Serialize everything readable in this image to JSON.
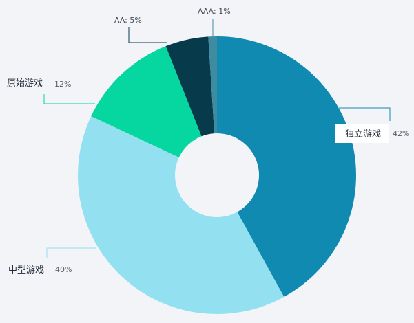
{
  "chart_data": {
    "type": "pie",
    "donut": true,
    "start_angle_deg": 0,
    "direction": "clockwise",
    "slices": [
      {
        "label": "独立游戏",
        "value": 42,
        "pct_text": "42%",
        "color": "#118ab2",
        "leader_color": "#118ab2",
        "label_style": "split"
      },
      {
        "label": "中型游戏",
        "value": 40,
        "pct_text": "40%",
        "color": "#93e1f0",
        "leader_color": "#93e1f0",
        "label_style": "split"
      },
      {
        "label": "原始游戏",
        "value": 12,
        "pct_text": "12%",
        "color": "#06d6a0",
        "leader_color": "#06d6a0",
        "label_style": "split"
      },
      {
        "label": "AA",
        "value": 5,
        "pct_text": "5%",
        "color": "#073b4c",
        "leader_color": "#073b4c",
        "label_style": "inline"
      },
      {
        "label": "AAA",
        "value": 1,
        "pct_text": "1%",
        "color": "#3f8b9f",
        "leader_color": "#3f8b9f",
        "label_style": "inline"
      }
    ],
    "legend": "none",
    "title": ""
  },
  "colors": {
    "background": "#f3f4f8",
    "label_box": "#ffffff"
  }
}
